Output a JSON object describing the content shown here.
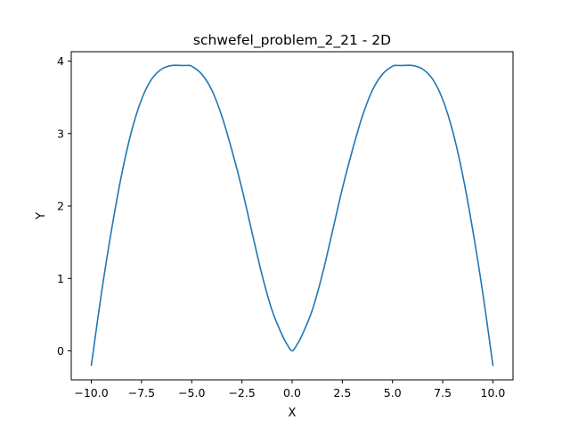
{
  "chart_data": {
    "type": "line",
    "title": "schwefel_problem_2_21 - 2D",
    "xlabel": "X",
    "ylabel": "Y",
    "xlim": [
      -11,
      11
    ],
    "ylim": [
      -0.4,
      4.13
    ],
    "xticks": [
      -10.0,
      -7.5,
      -5.0,
      -2.5,
      0.0,
      2.5,
      5.0,
      7.5,
      10.0
    ],
    "xtick_labels": [
      "−10.0",
      "−7.5",
      "−5.0",
      "−2.5",
      "0.0",
      "2.5",
      "5.0",
      "7.5",
      "10.0"
    ],
    "yticks": [
      0,
      1,
      2,
      3,
      4
    ],
    "ytick_labels": [
      "0",
      "1",
      "2",
      "3",
      "4"
    ],
    "grid": false,
    "series": [
      {
        "color": "#1f77b4",
        "x": [
          -10,
          -9.5,
          -9,
          -8.5,
          -8,
          -7.5,
          -7,
          -6.5,
          -6,
          -5.5,
          -5.2,
          -5,
          -4.5,
          -4,
          -3.5,
          -3,
          -2.5,
          -2,
          -1.5,
          -1,
          -0.5,
          -0.25,
          0,
          0.25,
          0.5,
          1,
          1.5,
          2,
          2.5,
          3,
          3.5,
          4,
          4.5,
          5,
          5.2,
          5.5,
          6,
          6.5,
          7,
          7.5,
          8,
          8.5,
          9,
          9.5,
          10
        ],
        "y": [
          -0.2,
          0.79,
          1.66,
          2.42,
          3.03,
          3.47,
          3.75,
          3.89,
          3.94,
          3.94,
          3.94,
          3.93,
          3.82,
          3.6,
          3.24,
          2.77,
          2.24,
          1.64,
          1.05,
          0.56,
          0.22,
          0.09,
          0.0,
          0.09,
          0.22,
          0.56,
          1.05,
          1.64,
          2.24,
          2.77,
          3.24,
          3.6,
          3.82,
          3.93,
          3.94,
          3.94,
          3.94,
          3.89,
          3.75,
          3.47,
          3.03,
          2.42,
          1.66,
          0.79,
          -0.2
        ]
      }
    ]
  }
}
